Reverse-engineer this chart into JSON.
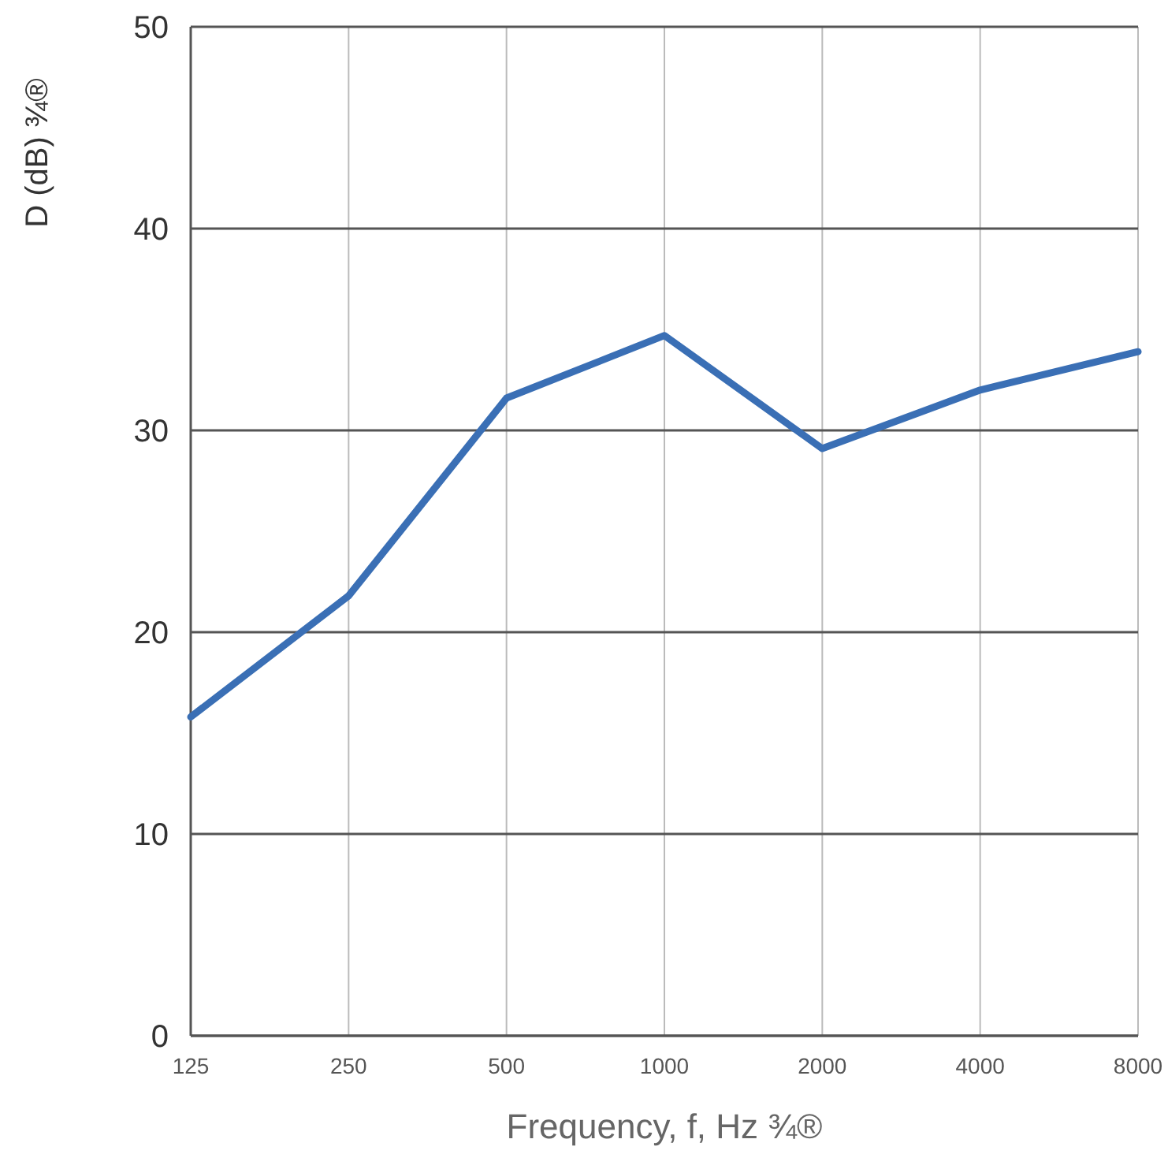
{
  "chart_data": {
    "type": "line",
    "xlabel": "Frequency, f, Hz ¾®",
    "ylabel": "D (dB) ¾®",
    "categories": [
      "125",
      "250",
      "500",
      "1000",
      "2000",
      "4000",
      "8000"
    ],
    "series": [
      {
        "color": "#3a6fb5",
        "values": [
          15.8,
          21.8,
          31.6,
          34.7,
          29.1,
          32.0,
          33.9
        ]
      }
    ],
    "ylim": [
      0,
      50
    ],
    "yticks": [
      0,
      10,
      20,
      30,
      40,
      50
    ],
    "grid": true,
    "marker": "none",
    "line_style": "solid"
  }
}
